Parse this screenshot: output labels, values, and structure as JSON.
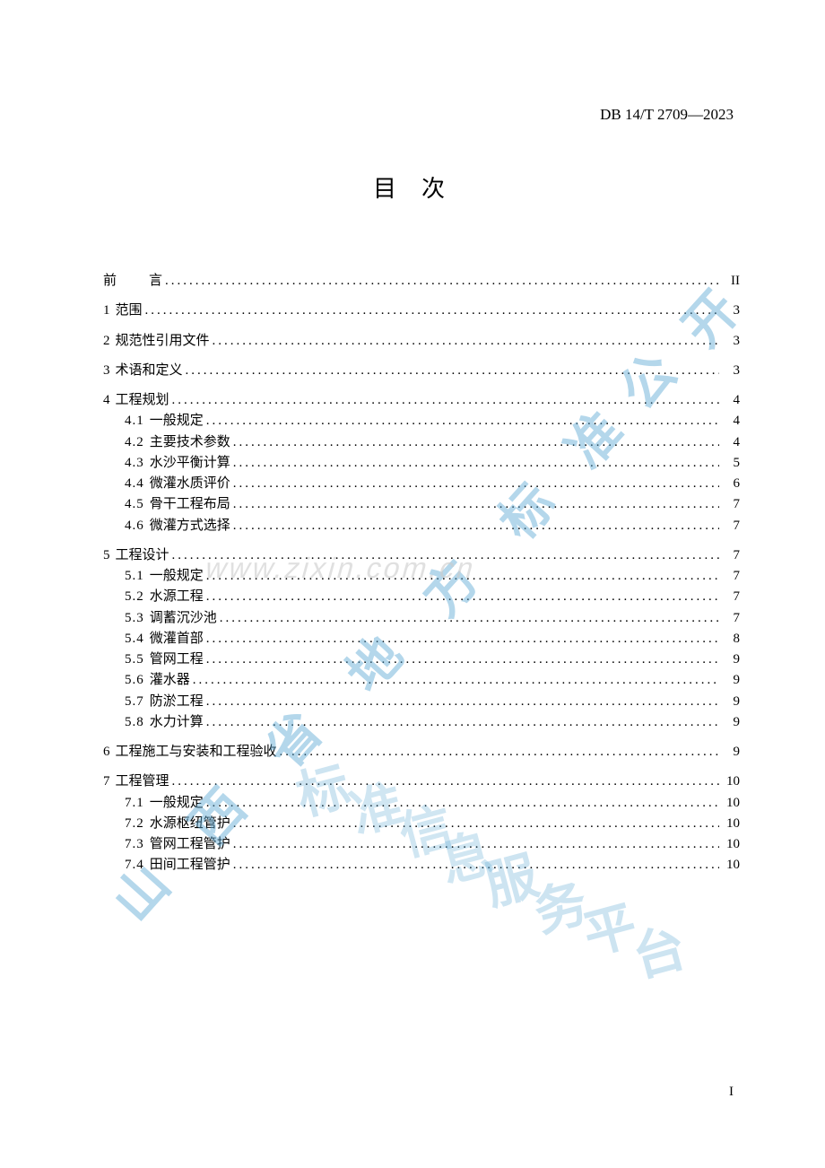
{
  "header": {
    "code": "DB 14/T 2709—2023"
  },
  "title": "目次",
  "page_number": "I",
  "watermarks": {
    "text_diagonal": "山西省地方标准信息服务平台",
    "url": "www.zixin.com.cn"
  },
  "colors": {
    "background": "#ffffff",
    "text": "#000000",
    "watermark_blue": "#5ba8d4",
    "watermark_gray": "#cccccc"
  },
  "toc": [
    {
      "level": 1,
      "num": "",
      "label": "前",
      "label_suffix": "言",
      "page": "II",
      "preface": true
    },
    {
      "level": 1,
      "num": "1",
      "label": "范围",
      "page": "3"
    },
    {
      "level": 1,
      "num": "2",
      "label": "规范性引用文件",
      "page": "3"
    },
    {
      "level": 1,
      "num": "3",
      "label": "术语和定义",
      "page": "3"
    },
    {
      "level": 1,
      "num": "4",
      "label": "工程规划",
      "page": "4"
    },
    {
      "level": 2,
      "num": "4.1",
      "label": "一般规定",
      "page": "4"
    },
    {
      "level": 2,
      "num": "4.2",
      "label": "主要技术参数",
      "page": "4"
    },
    {
      "level": 2,
      "num": "4.3",
      "label": "水沙平衡计算",
      "page": "5"
    },
    {
      "level": 2,
      "num": "4.4",
      "label": "微灌水质评价",
      "page": "6"
    },
    {
      "level": 2,
      "num": "4.5",
      "label": "骨干工程布局",
      "page": "7"
    },
    {
      "level": 2,
      "num": "4.6",
      "label": "微灌方式选择",
      "page": "7"
    },
    {
      "level": 1,
      "num": "5",
      "label": "工程设计",
      "page": "7"
    },
    {
      "level": 2,
      "num": "5.1",
      "label": "一般规定",
      "page": "7"
    },
    {
      "level": 2,
      "num": "5.2",
      "label": "水源工程",
      "page": "7"
    },
    {
      "level": 2,
      "num": "5.3",
      "label": "调蓄沉沙池",
      "page": "7"
    },
    {
      "level": 2,
      "num": "5.4",
      "label": "微灌首部",
      "page": "8"
    },
    {
      "level": 2,
      "num": "5.5",
      "label": "管网工程",
      "page": "9"
    },
    {
      "level": 2,
      "num": "5.6",
      "label": "灌水器",
      "page": "9"
    },
    {
      "level": 2,
      "num": "5.7",
      "label": "防淤工程",
      "page": "9"
    },
    {
      "level": 2,
      "num": "5.8",
      "label": "水力计算",
      "page": "9"
    },
    {
      "level": 1,
      "num": "6",
      "label": "工程施工与安装和工程验收",
      "page": "9"
    },
    {
      "level": 1,
      "num": "7",
      "label": "工程管理",
      "page": "10"
    },
    {
      "level": 2,
      "num": "7.1",
      "label": "一般规定",
      "page": "10"
    },
    {
      "level": 2,
      "num": "7.2",
      "label": "水源枢纽管护",
      "page": "10"
    },
    {
      "level": 2,
      "num": "7.3",
      "label": "管网工程管护",
      "page": "10"
    },
    {
      "level": 2,
      "num": "7.4",
      "label": "田间工程管护",
      "page": "10"
    }
  ]
}
